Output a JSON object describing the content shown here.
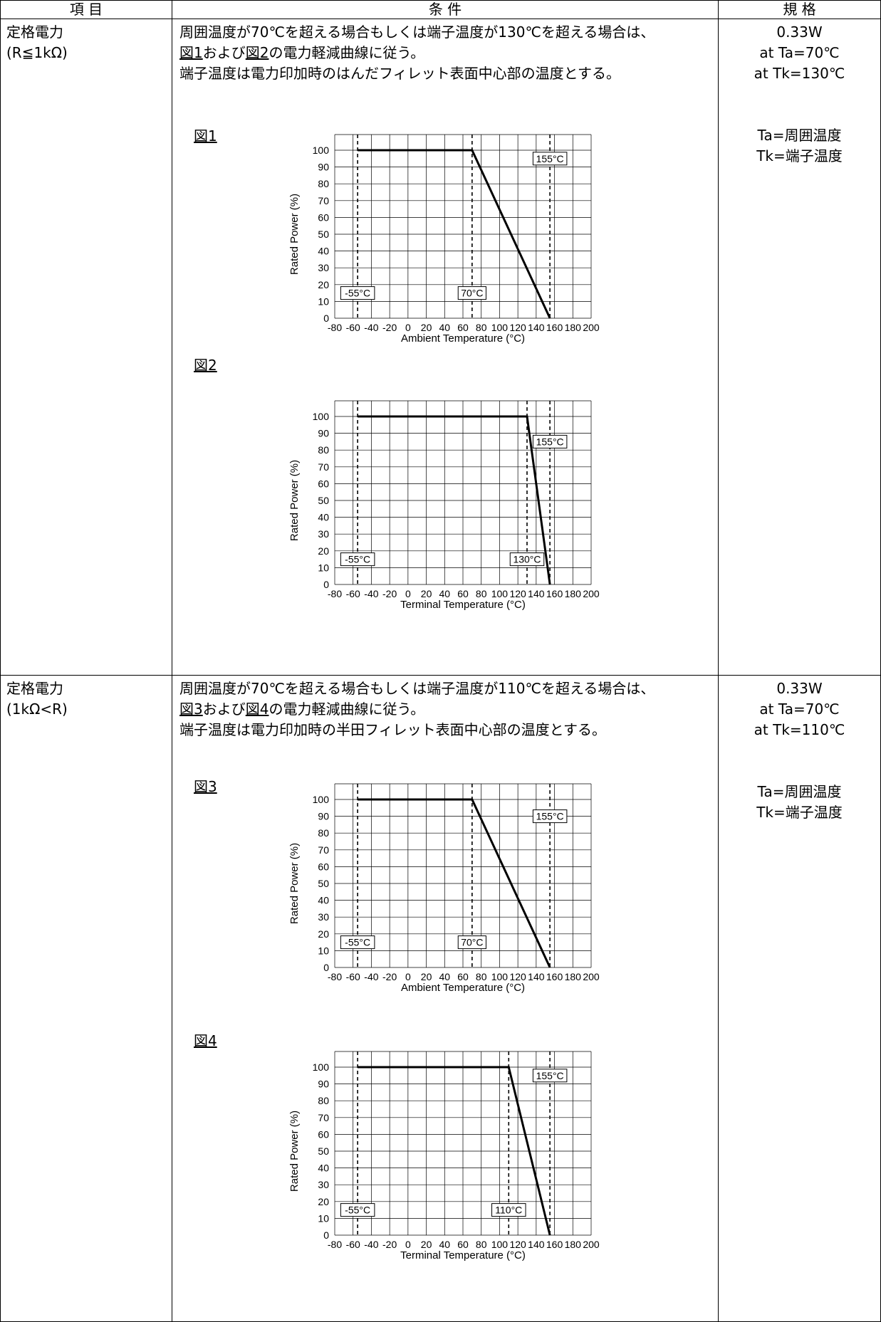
{
  "headers": {
    "item": "項 目",
    "condition": "条 件",
    "spec": "規 格"
  },
  "rows": [
    {
      "item_line1": "定格電力",
      "item_line2": "(R≦1kΩ)",
      "cond_line1": "周囲温度が70℃を超える場合もしくは端子温度が130℃を超える場合は、",
      "cond_line2_a": "図1",
      "cond_line2_b": "および",
      "cond_line2_c": "図2",
      "cond_line2_d": "の電力軽減曲線に従う。",
      "cond_line3": "端子温度は電力印加時のはんだフィレット表面中心部の温度とする。",
      "spec_line1": "0.33W",
      "spec_line2": "at Ta=70℃",
      "spec_line3": "at Tk=130℃",
      "spec_line4": "Ta=周囲温度",
      "spec_line5": "Tk=端子温度"
    },
    {
      "item_line1": "定格電力",
      "item_line2": "(1kΩ<R)",
      "cond_line1": "周囲温度が70℃を超える場合もしくは端子温度が110℃を超える場合は、",
      "cond_line2_a": "図3",
      "cond_line2_b": "および",
      "cond_line2_c": "図4",
      "cond_line2_d": "の電力軽減曲線に従う。",
      "cond_line3": "端子温度は電力印加時の半田フィレット表面中心部の温度とする。",
      "spec_line1": "0.33W",
      "spec_line2": "at Ta=70℃",
      "spec_line3": "at Tk=110℃",
      "spec_line4": "Ta=周囲温度",
      "spec_line5": "Tk=端子温度"
    }
  ],
  "chart_data": [
    {
      "type": "line",
      "figure_label": "図1",
      "xlabel": "Ambient Temperature (°C)",
      "ylabel": "Rated Power (%)",
      "xlim": [
        -80,
        200
      ],
      "ylim": [
        0,
        100
      ],
      "xticks": [
        -80,
        -60,
        -40,
        -20,
        0,
        20,
        40,
        60,
        80,
        100,
        120,
        140,
        160,
        180,
        200
      ],
      "yticks": [
        0,
        10,
        20,
        30,
        40,
        50,
        60,
        70,
        80,
        90,
        100
      ],
      "grid": true,
      "series": [
        {
          "x": [
            -55,
            70,
            155
          ],
          "y": [
            100,
            100,
            0
          ]
        }
      ],
      "vlines": [
        -55,
        70,
        155
      ],
      "annotations": [
        {
          "text": "-55°C",
          "x": -55,
          "y": 15
        },
        {
          "text": "70°C",
          "x": 70,
          "y": 15
        },
        {
          "text": "155°C",
          "x": 155,
          "y": 95
        }
      ]
    },
    {
      "type": "line",
      "figure_label": "図2",
      "xlabel": "Terminal Temperature (°C)",
      "ylabel": "Rated Power (%)",
      "xlim": [
        -80,
        200
      ],
      "ylim": [
        0,
        100
      ],
      "xticks": [
        -80,
        -60,
        -40,
        -20,
        0,
        20,
        40,
        60,
        80,
        100,
        120,
        140,
        160,
        180,
        200
      ],
      "yticks": [
        0,
        10,
        20,
        30,
        40,
        50,
        60,
        70,
        80,
        90,
        100
      ],
      "grid": true,
      "series": [
        {
          "x": [
            -55,
            130,
            155
          ],
          "y": [
            100,
            100,
            0
          ]
        }
      ],
      "vlines": [
        -55,
        130,
        155
      ],
      "annotations": [
        {
          "text": "-55°C",
          "x": -55,
          "y": 15
        },
        {
          "text": "130°C",
          "x": 130,
          "y": 15
        },
        {
          "text": "155°C",
          "x": 155,
          "y": 85
        }
      ]
    },
    {
      "type": "line",
      "figure_label": "図3",
      "xlabel": "Ambient Temperature (°C)",
      "ylabel": "Rated Power (%)",
      "xlim": [
        -80,
        200
      ],
      "ylim": [
        0,
        100
      ],
      "xticks": [
        -80,
        -60,
        -40,
        -20,
        0,
        20,
        40,
        60,
        80,
        100,
        120,
        140,
        160,
        180,
        200
      ],
      "yticks": [
        0,
        10,
        20,
        30,
        40,
        50,
        60,
        70,
        80,
        90,
        100
      ],
      "grid": true,
      "series": [
        {
          "x": [
            -55,
            70,
            155
          ],
          "y": [
            100,
            100,
            0
          ]
        }
      ],
      "vlines": [
        -55,
        70,
        155
      ],
      "annotations": [
        {
          "text": "-55°C",
          "x": -55,
          "y": 15
        },
        {
          "text": "70°C",
          "x": 70,
          "y": 15
        },
        {
          "text": "155°C",
          "x": 155,
          "y": 90
        }
      ]
    },
    {
      "type": "line",
      "figure_label": "図4",
      "xlabel": "Terminal Temperature (°C)",
      "ylabel": "Rated Power (%)",
      "xlim": [
        -80,
        200
      ],
      "ylim": [
        0,
        100
      ],
      "xticks": [
        -80,
        -60,
        -40,
        -20,
        0,
        20,
        40,
        60,
        80,
        100,
        120,
        140,
        160,
        180,
        200
      ],
      "yticks": [
        0,
        10,
        20,
        30,
        40,
        50,
        60,
        70,
        80,
        90,
        100
      ],
      "grid": true,
      "series": [
        {
          "x": [
            -55,
            110,
            155
          ],
          "y": [
            100,
            100,
            0
          ]
        }
      ],
      "vlines": [
        -55,
        110,
        155
      ],
      "annotations": [
        {
          "text": "-55°C",
          "x": -55,
          "y": 15
        },
        {
          "text": "110°C",
          "x": 110,
          "y": 15
        },
        {
          "text": "155°C",
          "x": 155,
          "y": 95
        }
      ]
    }
  ]
}
